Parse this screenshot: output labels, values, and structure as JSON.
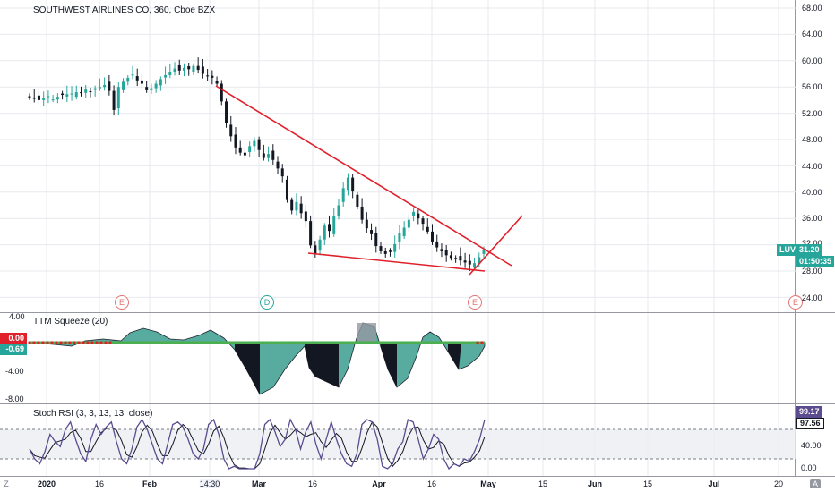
{
  "chart": {
    "title": "SOUTHWEST AIRLINES CO, 360, Cboe BZX",
    "ticker_badge": "LUV",
    "last_price": "31.20",
    "countdown": "01:50:35",
    "colors": {
      "up": "#26a69a",
      "down": "#131722",
      "trend": "#e0202a",
      "grid": "#e6e9ee",
      "last": "#26a69a"
    }
  },
  "price_scale": [
    "68.00",
    "64.00",
    "60.00",
    "56.00",
    "52.00",
    "48.00",
    "44.00",
    "40.00",
    "36.00",
    "32.00",
    "28.00",
    "24.00"
  ],
  "events": [
    "E",
    "D",
    "E",
    "E"
  ],
  "squeeze": {
    "title": "TTM Squeeze (20)",
    "left_scale": [
      "4.00",
      "-4.00",
      "-8.00"
    ],
    "badge_zero": "0.00",
    "badge_value": "-0.69"
  },
  "stoch": {
    "title": "Stoch RSI (3, 3, 13, 13, close)",
    "scale": [
      "40.00",
      "0.00"
    ],
    "badge_k": "99.17",
    "badge_d": "97.56"
  },
  "x_axis": [
    "2020",
    "16",
    "Feb",
    "14:30",
    "Mar",
    "16",
    "Apr",
    "16",
    "May",
    "15",
    "Jun",
    "15",
    "Jul",
    "20"
  ],
  "corner_left": "Z",
  "corner_right": "A",
  "chart_data": {
    "type": "candlestick",
    "title": "SOUTHWEST AIRLINES CO, 360, Cboe BZX",
    "y_range": [
      22,
      69
    ],
    "close_series": [
      54.4,
      54.2,
      54.0,
      54.3,
      54.6,
      54.1,
      54.5,
      54.8,
      54.9,
      55.0,
      55.2,
      55.1,
      55.6,
      55.3,
      55.8,
      56.0,
      56.3,
      55.4,
      52.5,
      56.0,
      56.8,
      57.4,
      57.9,
      57.0,
      56.5,
      55.5,
      55.8,
      56.5,
      57.2,
      57.8,
      58.3,
      58.8,
      58.5,
      58.9,
      58.7,
      59.2,
      58.6,
      58.0,
      57.7,
      57.4,
      56.5,
      53.8,
      50.5,
      48.5,
      46.8,
      46.0,
      45.6,
      47.0,
      47.8,
      46.4,
      45.2,
      45.8,
      44.9,
      43.6,
      42.4,
      38.8,
      37.2,
      38.5,
      36.8,
      35.6,
      31.9,
      30.6,
      32.8,
      34.9,
      34.1,
      36.4,
      38.0,
      40.6,
      42.2,
      40.1,
      37.8,
      35.8,
      34.5,
      33.6,
      31.8,
      31.0,
      30.6,
      30.9,
      32.1,
      33.8,
      34.6,
      35.8,
      37.0,
      36.0,
      35.2,
      34.0,
      32.5,
      31.6,
      31.0,
      30.4,
      30.0,
      29.8,
      29.6,
      29.3,
      29.0,
      29.2,
      30.1,
      31.2
    ]
  }
}
